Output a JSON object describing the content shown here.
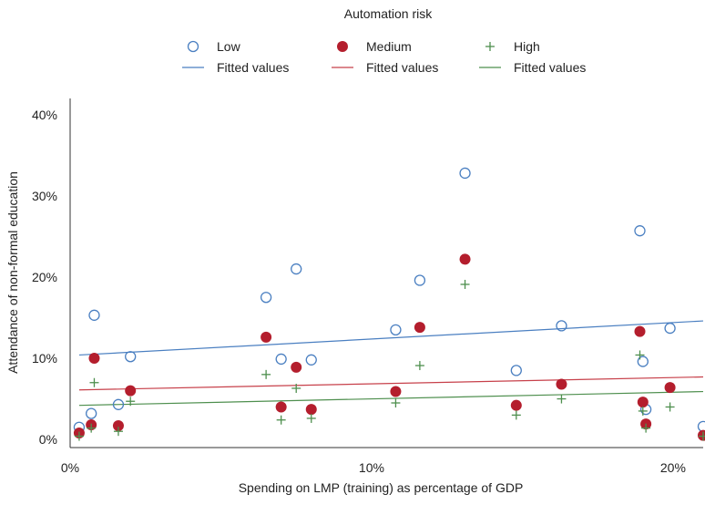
{
  "chart_data": {
    "type": "scatter",
    "title": "",
    "legend": {
      "title": "Automation risk",
      "placement": "top",
      "entries": [
        {
          "label": "Low",
          "kind": "marker",
          "series": "Low"
        },
        {
          "label": "Medium",
          "kind": "marker",
          "series": "Medium"
        },
        {
          "label": "High",
          "kind": "marker",
          "series": "High"
        },
        {
          "label": "Fitted values",
          "kind": "line",
          "series": "Low"
        },
        {
          "label": "Fitted values",
          "kind": "line",
          "series": "Medium"
        },
        {
          "label": "Fitted values",
          "kind": "line",
          "series": "High"
        }
      ]
    },
    "xlabel": "Spending on LMP (training) as percentage of GDP",
    "ylabel": "Attendance of non-formal education",
    "xlim": [
      0,
      21
    ],
    "ylim": [
      -1,
      42
    ],
    "x_ticks": [
      {
        "value": 0,
        "label": "0%"
      },
      {
        "value": 10,
        "label": "10%"
      },
      {
        "value": 20,
        "label": "20%"
      }
    ],
    "y_ticks": [
      {
        "value": 0,
        "label": "0%"
      },
      {
        "value": 10,
        "label": "10%"
      },
      {
        "value": 20,
        "label": "20%"
      },
      {
        "value": 30,
        "label": "30%"
      },
      {
        "value": 40,
        "label": "40%"
      }
    ],
    "grid": false,
    "series": [
      {
        "name": "Low",
        "marker": "hollow-circle",
        "color": "#4a7fc1",
        "points": [
          [
            0.3,
            1.5
          ],
          [
            0.7,
            3.2
          ],
          [
            0.8,
            15.3
          ],
          [
            1.6,
            4.3
          ],
          [
            2.0,
            10.2
          ],
          [
            6.5,
            17.5
          ],
          [
            7.0,
            9.9
          ],
          [
            7.5,
            21.0
          ],
          [
            8.0,
            9.8
          ],
          [
            10.8,
            13.5
          ],
          [
            11.6,
            19.6
          ],
          [
            13.1,
            32.8
          ],
          [
            14.8,
            8.5
          ],
          [
            16.3,
            14.0
          ],
          [
            18.9,
            25.7
          ],
          [
            19.0,
            9.6
          ],
          [
            19.1,
            3.7
          ],
          [
            19.9,
            13.7
          ],
          [
            21.0,
            1.6
          ]
        ]
      },
      {
        "name": "Medium",
        "marker": "filled-circle",
        "color": "#b41e2d",
        "points": [
          [
            0.3,
            0.8
          ],
          [
            0.7,
            1.8
          ],
          [
            0.8,
            10.0
          ],
          [
            1.6,
            1.7
          ],
          [
            2.0,
            6.0
          ],
          [
            6.5,
            12.6
          ],
          [
            7.0,
            4.0
          ],
          [
            7.5,
            8.9
          ],
          [
            8.0,
            3.7
          ],
          [
            10.8,
            5.9
          ],
          [
            11.6,
            13.8
          ],
          [
            13.1,
            22.2
          ],
          [
            14.8,
            4.2
          ],
          [
            16.3,
            6.8
          ],
          [
            18.9,
            13.3
          ],
          [
            19.0,
            4.6
          ],
          [
            19.1,
            1.9
          ],
          [
            19.9,
            6.4
          ],
          [
            21.0,
            0.5
          ]
        ]
      },
      {
        "name": "High",
        "marker": "plus",
        "color": "#4e8f4e",
        "points": [
          [
            0.3,
            0.4
          ],
          [
            0.7,
            1.4
          ],
          [
            0.8,
            7.0
          ],
          [
            1.6,
            1.0
          ],
          [
            2.0,
            4.7
          ],
          [
            6.5,
            8.0
          ],
          [
            7.0,
            2.4
          ],
          [
            7.5,
            6.3
          ],
          [
            8.0,
            2.6
          ],
          [
            10.8,
            4.5
          ],
          [
            11.6,
            9.1
          ],
          [
            13.1,
            19.1
          ],
          [
            14.8,
            3.0
          ],
          [
            16.3,
            5.0
          ],
          [
            18.9,
            10.4
          ],
          [
            19.0,
            3.5
          ],
          [
            19.1,
            1.4
          ],
          [
            19.9,
            4.0
          ],
          [
            21.0,
            0.4
          ]
        ]
      }
    ],
    "fitted_lines": [
      {
        "series": "Low",
        "color": "#4a7fc1",
        "x": [
          0.3,
          21.0
        ],
        "y": [
          10.4,
          14.6
        ]
      },
      {
        "series": "Medium",
        "color": "#c7404a",
        "x": [
          0.3,
          21.0
        ],
        "y": [
          6.1,
          7.7
        ]
      },
      {
        "series": "High",
        "color": "#4e8f4e",
        "x": [
          0.3,
          21.0
        ],
        "y": [
          4.2,
          5.9
        ]
      }
    ]
  }
}
